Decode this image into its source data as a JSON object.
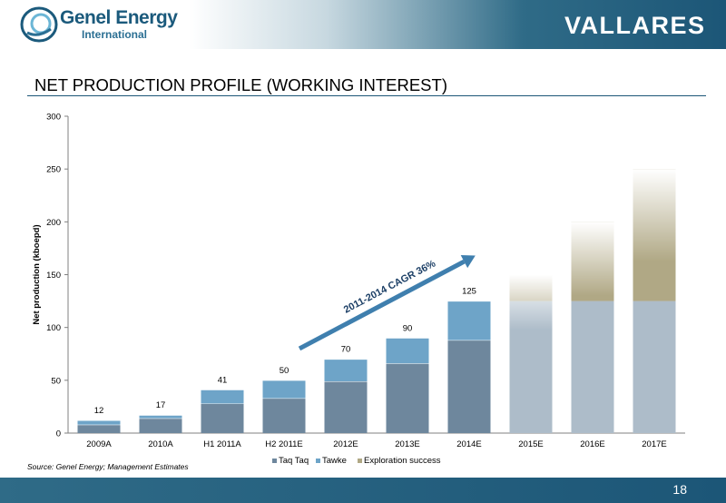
{
  "header": {
    "company_name": "Genel Energy",
    "company_sub": "International",
    "partner_name": "VALLARES"
  },
  "title": "NET PRODUCTION PROFILE (WORKING INTEREST)",
  "source_note": "Source: Genel Energy; Management Estimates",
  "page_number": "18",
  "colors": {
    "brand_dark": "#1c5677",
    "taq_taq": "#6e879d",
    "tawke": "#6ea4c8",
    "exploration": "#b0a885",
    "forecast_base": "#adbcc9"
  },
  "chart_data": {
    "type": "bar",
    "stacked": true,
    "ylabel": "Net production (kboepd)",
    "xlabel": "",
    "ylim": [
      0,
      300
    ],
    "yticks": [
      0,
      50,
      100,
      150,
      200,
      250,
      300
    ],
    "categories": [
      "2009A",
      "2010A",
      "H1 2011A",
      "H2 2011E",
      "2012E",
      "2013E",
      "2014E",
      "2015E",
      "2016E",
      "2017E"
    ],
    "series": [
      {
        "name": "Taq Taq",
        "values": [
          8,
          14,
          28,
          33,
          49,
          66,
          88,
          125,
          125,
          125
        ]
      },
      {
        "name": "Tawke",
        "values": [
          4,
          3,
          13,
          17,
          21,
          24,
          37,
          0,
          0,
          0
        ]
      },
      {
        "name": "Exploration success",
        "values": [
          0,
          0,
          0,
          0,
          0,
          0,
          0,
          25,
          75,
          125
        ]
      }
    ],
    "totals": [
      "12",
      "17",
      "41",
      "50",
      "70",
      "90",
      "125",
      "",
      "",
      ""
    ],
    "legend": {
      "position": "bottom"
    },
    "annotation": "2011-2014 CAGR 36%"
  }
}
